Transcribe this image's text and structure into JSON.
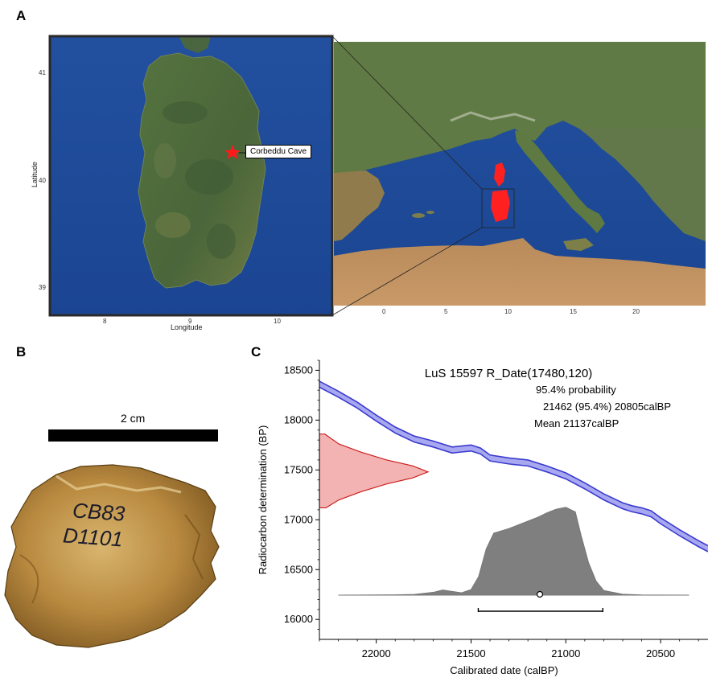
{
  "panels": {
    "a": "A",
    "b": "B",
    "c": "C"
  },
  "map": {
    "site_label": "Corbeddu Cave",
    "latitude_label": "Latitude",
    "longitude_label": "Longitude",
    "lat_ticks": [
      "41",
      "40",
      "39"
    ],
    "lon_ticks": [
      "8",
      "9",
      "10"
    ],
    "europe_lon_ticks": [
      "0",
      "5",
      "10",
      "15",
      "20"
    ],
    "colors": {
      "sea": "#1f4f9e",
      "land": "#4f6d3c",
      "highlight": "#ff2020"
    }
  },
  "specimen": {
    "scale_label": "2 cm",
    "inscription_line1": "CB83",
    "inscription_line2": "D1101"
  },
  "chart_data": {
    "type": "area",
    "title": "LuS 15597 R_Date(17480,120)",
    "annotations": [
      "95.4% probability",
      "21462 (95.4%) 20805calBP",
      "Mean 21137calBP"
    ],
    "xlabel": "Calibrated date (calBP)",
    "ylabel": "Radiocarbon determination (BP)",
    "xlim": [
      22300,
      20250
    ],
    "ylim": [
      15800,
      18600
    ],
    "x_reversed": true,
    "x_ticks": [
      "22000",
      "21500",
      "21000",
      "20500"
    ],
    "y_ticks": [
      "18500",
      "18000",
      "17500",
      "17000",
      "16500",
      "16000"
    ],
    "calibration_curve": {
      "color": "#3a3ad0",
      "fill": "#a8a8f0",
      "band_bp": 30,
      "points": [
        [
          22300,
          18360
        ],
        [
          22200,
          18260
        ],
        [
          22100,
          18150
        ],
        [
          22000,
          18020
        ],
        [
          21900,
          17900
        ],
        [
          21800,
          17810
        ],
        [
          21700,
          17760
        ],
        [
          21600,
          17700
        ],
        [
          21550,
          17710
        ],
        [
          21500,
          17720
        ],
        [
          21450,
          17690
        ],
        [
          21400,
          17620
        ],
        [
          21300,
          17590
        ],
        [
          21200,
          17570
        ],
        [
          21100,
          17510
        ],
        [
          21000,
          17440
        ],
        [
          20900,
          17340
        ],
        [
          20800,
          17230
        ],
        [
          20700,
          17140
        ],
        [
          20650,
          17110
        ],
        [
          20600,
          17090
        ],
        [
          20550,
          17060
        ],
        [
          20500,
          16990
        ],
        [
          20400,
          16870
        ],
        [
          20300,
          16760
        ],
        [
          20250,
          16710
        ]
      ]
    },
    "radiocarbon_density": {
      "color": "#cc2020",
      "fill": "#f4b3b3",
      "points": [
        [
          17120,
          0.06
        ],
        [
          17200,
          0.18
        ],
        [
          17280,
          0.38
        ],
        [
          17360,
          0.62
        ],
        [
          17420,
          0.86
        ],
        [
          17480,
          1.0
        ],
        [
          17540,
          0.86
        ],
        [
          17600,
          0.62
        ],
        [
          17680,
          0.38
        ],
        [
          17760,
          0.18
        ],
        [
          17860,
          0.05
        ]
      ]
    },
    "calibrated_density": {
      "color": "#777777",
      "fill": "#7f7f7f",
      "points": [
        [
          22200,
          0.0
        ],
        [
          21900,
          0.003
        ],
        [
          21800,
          0.008
        ],
        [
          21700,
          0.03
        ],
        [
          21650,
          0.055
        ],
        [
          21600,
          0.04
        ],
        [
          21550,
          0.025
        ],
        [
          21500,
          0.06
        ],
        [
          21460,
          0.2
        ],
        [
          21420,
          0.5
        ],
        [
          21380,
          0.67
        ],
        [
          21300,
          0.72
        ],
        [
          21250,
          0.76
        ],
        [
          21200,
          0.8
        ],
        [
          21150,
          0.84
        ],
        [
          21100,
          0.89
        ],
        [
          21050,
          0.93
        ],
        [
          21000,
          0.95
        ],
        [
          20950,
          0.9
        ],
        [
          20920,
          0.65
        ],
        [
          20880,
          0.35
        ],
        [
          20840,
          0.15
        ],
        [
          20800,
          0.05
        ],
        [
          20700,
          0.01
        ],
        [
          20600,
          0.002
        ],
        [
          20350,
          0.0
        ]
      ]
    },
    "range_95": [
      21462,
      20805
    ],
    "mean": 21137
  }
}
